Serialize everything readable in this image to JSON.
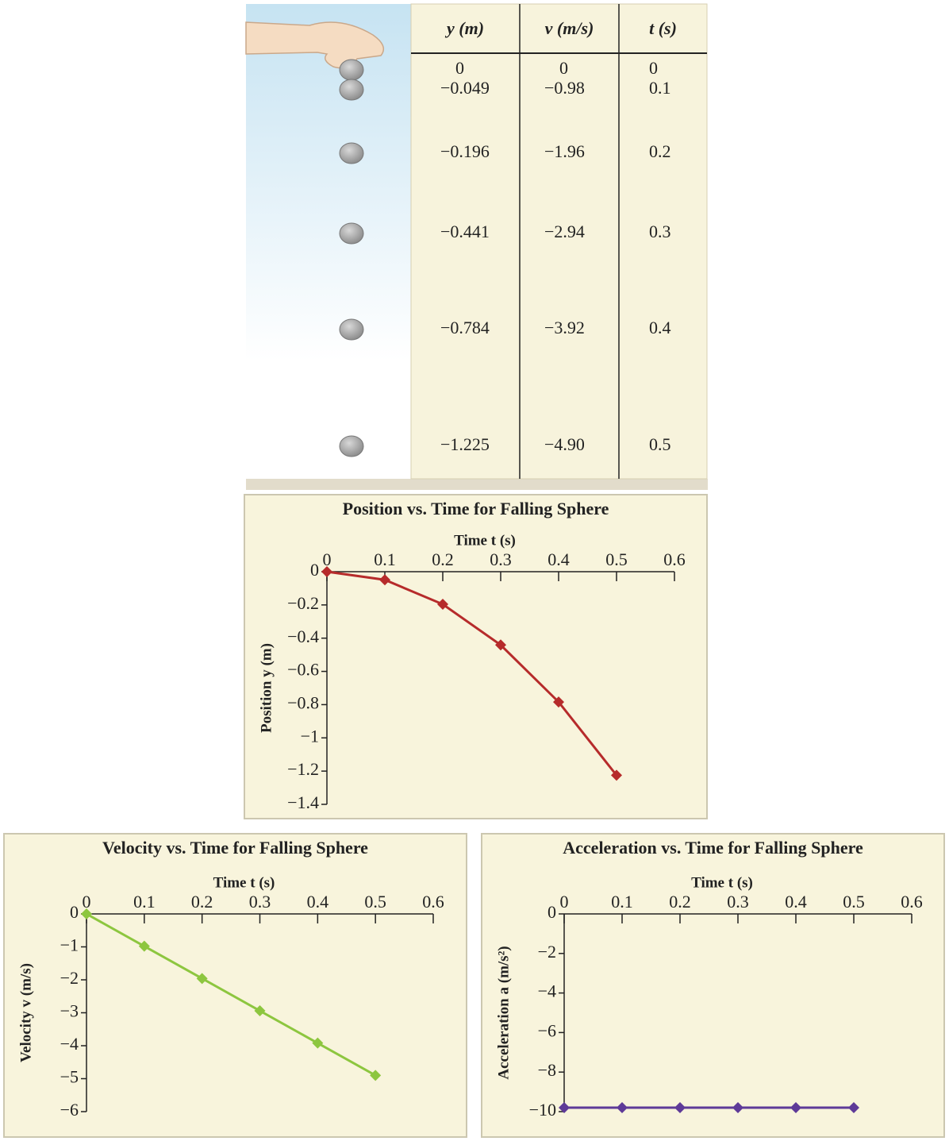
{
  "table": {
    "headers": [
      "y (m)",
      "v (m/s)",
      "t (s)"
    ],
    "rows": [
      [
        "0",
        "0",
        "0"
      ],
      [
        "−0.049",
        "−0.98",
        "0.1"
      ],
      [
        "−0.196",
        "−1.96",
        "0.2"
      ],
      [
        "−0.441",
        "−2.94",
        "0.3"
      ],
      [
        "−0.784",
        "−3.92",
        "0.4"
      ],
      [
        "−1.225",
        "−4.90",
        "0.5"
      ]
    ]
  },
  "chart_data": [
    {
      "type": "line",
      "title": "Position vs. Time for Falling Sphere",
      "x_label": "Time t (s)",
      "y_label": "Position y (m)",
      "x": [
        0,
        0.1,
        0.2,
        0.3,
        0.4,
        0.5
      ],
      "values": [
        0,
        -0.049,
        -0.196,
        -0.441,
        -0.784,
        -1.225
      ],
      "color": "#b62b2b",
      "xlim": [
        0,
        0.6
      ],
      "xticks": [
        0,
        0.1,
        0.2,
        0.3,
        0.4,
        0.5,
        0.6
      ],
      "ylim": [
        -1.4,
        0
      ],
      "yticks": [
        0,
        {
          "value": -0.2,
          "label": "−0.2"
        },
        {
          "value": -0.4,
          "label": "−0.4"
        },
        {
          "value": -0.6,
          "label": "−0.6"
        },
        {
          "value": -0.8,
          "label": "−0.8"
        },
        {
          "value": -1,
          "label": "−1"
        },
        {
          "value": -1.2,
          "label": "−1.2"
        },
        {
          "value": -1.4,
          "label": "−1.4"
        }
      ]
    },
    {
      "type": "line",
      "title": "Velocity vs. Time for Falling Sphere",
      "x_label": "Time t (s)",
      "y_label": "Velocity v (m/s)",
      "x": [
        0,
        0.1,
        0.2,
        0.3,
        0.4,
        0.5
      ],
      "values": [
        0,
        -0.98,
        -1.96,
        -2.94,
        -3.92,
        -4.9
      ],
      "color": "#8dc63f",
      "xlim": [
        0,
        0.6
      ],
      "xticks": [
        0,
        0.1,
        0.2,
        0.3,
        0.4,
        0.5,
        0.6
      ],
      "ylim": [
        -6,
        0
      ],
      "yticks": [
        0,
        {
          "value": -1,
          "label": "−1"
        },
        {
          "value": -2,
          "label": "−2"
        },
        {
          "value": -3,
          "label": "−3"
        },
        {
          "value": -4,
          "label": "−4"
        },
        {
          "value": -5,
          "label": "−5"
        },
        {
          "value": -6,
          "label": "−6"
        }
      ]
    },
    {
      "type": "line",
      "title": "Acceleration vs. Time for Falling Sphere",
      "x_label": "Time t (s)",
      "y_label": "Acceleration a (m/s²)",
      "x": [
        0,
        0.1,
        0.2,
        0.3,
        0.4,
        0.5
      ],
      "values": [
        -9.8,
        -9.8,
        -9.8,
        -9.8,
        -9.8,
        -9.8
      ],
      "color": "#5e3a98",
      "xlim": [
        0,
        0.6
      ],
      "xticks": [
        0,
        0.1,
        0.2,
        0.3,
        0.4,
        0.5,
        0.6
      ],
      "ylim": [
        -10,
        0
      ],
      "yticks": [
        0,
        {
          "value": -2,
          "label": "−2"
        },
        {
          "value": -4,
          "label": "−4"
        },
        {
          "value": -6,
          "label": "−6"
        },
        {
          "value": -8,
          "label": "−8"
        },
        {
          "value": -10,
          "label": "−10"
        }
      ]
    }
  ]
}
